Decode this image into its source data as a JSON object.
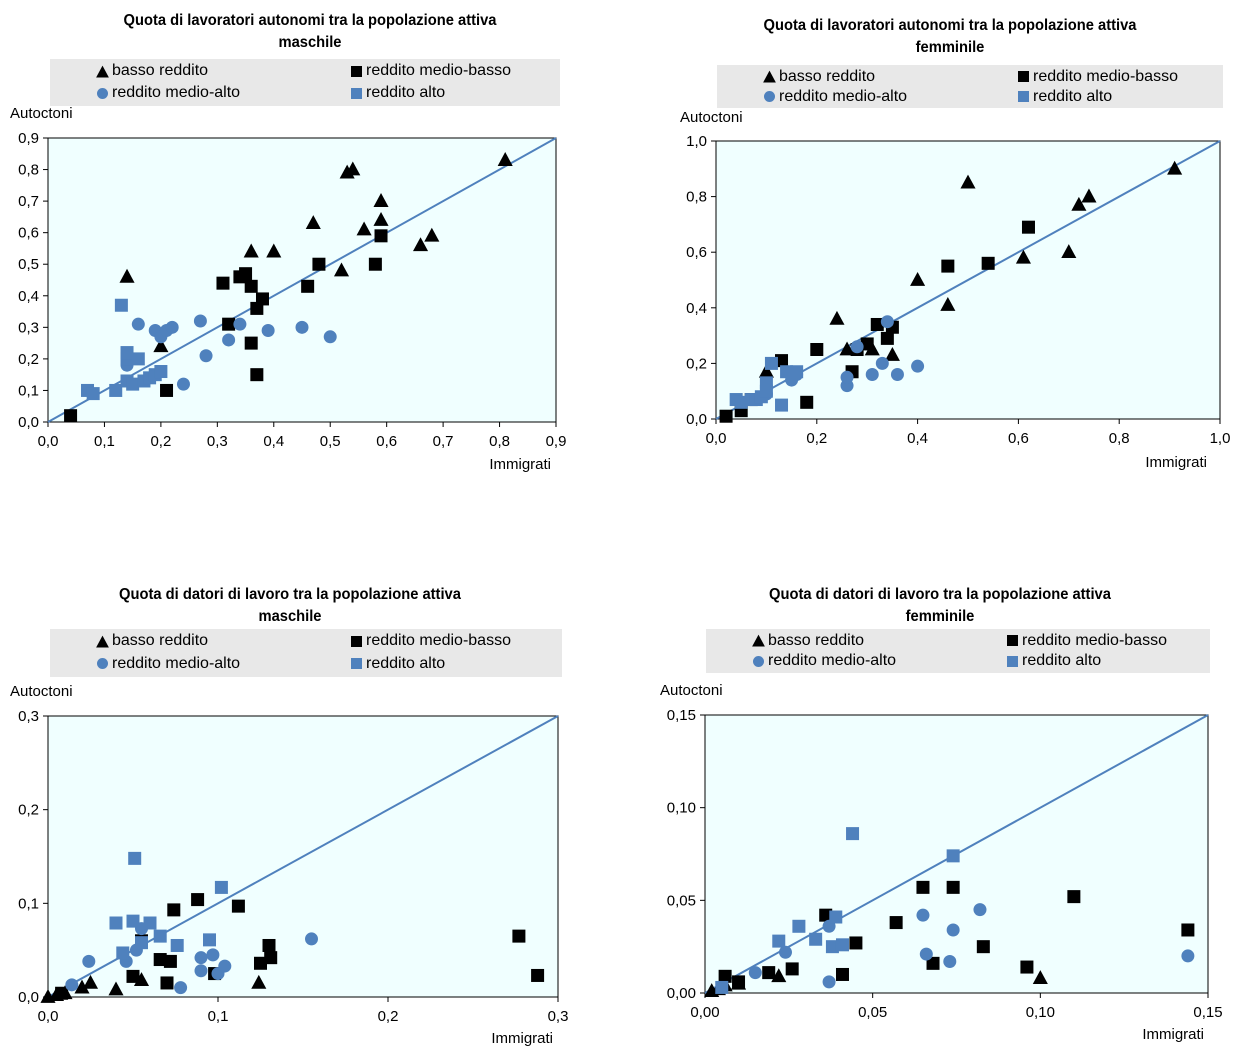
{
  "colors": {
    "black": "#000000",
    "blue": "#4f81bd",
    "plot_bg": "#f0ffff",
    "legend_bg": "#e8e8e8",
    "diag": "#4f81bd"
  },
  "legend_labels": {
    "low": "basso reddito",
    "lower_mid": "reddito medio-basso",
    "upper_mid": "reddito medio-alto",
    "high": "reddito alto"
  },
  "chart_data": [
    {
      "type": "scatter",
      "title": "Quota di lavoratori autonomi tra la popolazione attiva maschile",
      "title_lines": [
        "Quota di lavoratori autonomi tra la popolazione attiva",
        "maschile"
      ],
      "ylabel": "Autoctoni",
      "xlabel": "Immigrati",
      "xlim": [
        0,
        0.9
      ],
      "ylim": [
        0,
        0.9
      ],
      "xticks": [
        0,
        0.1,
        0.2,
        0.3,
        0.4,
        0.5,
        0.6,
        0.7,
        0.8,
        0.9
      ],
      "yticks": [
        0,
        0.1,
        0.2,
        0.3,
        0.4,
        0.5,
        0.6,
        0.7,
        0.8,
        0.9
      ],
      "xtick_labels": [
        "0,0",
        "0,1",
        "0,2",
        "0,3",
        "0,4",
        "0,5",
        "0,6",
        "0,7",
        "0,8",
        "0,9"
      ],
      "ytick_labels": [
        "0,0",
        "0,1",
        "0,2",
        "0,3",
        "0,4",
        "0,5",
        "0,6",
        "0,7",
        "0,8",
        "0,9"
      ],
      "series": [
        {
          "name": "basso reddito",
          "points": [
            [
              0.14,
              0.46
            ],
            [
              0.2,
              0.24
            ],
            [
              0.36,
              0.54
            ],
            [
              0.4,
              0.54
            ],
            [
              0.47,
              0.63
            ],
            [
              0.52,
              0.48
            ],
            [
              0.53,
              0.79
            ],
            [
              0.54,
              0.8
            ],
            [
              0.56,
              0.61
            ],
            [
              0.59,
              0.7
            ],
            [
              0.59,
              0.64
            ],
            [
              0.66,
              0.56
            ],
            [
              0.68,
              0.59
            ],
            [
              0.81,
              0.83
            ]
          ]
        },
        {
          "name": "reddito medio-basso",
          "points": [
            [
              0.04,
              0.02
            ],
            [
              0.21,
              0.1
            ],
            [
              0.31,
              0.44
            ],
            [
              0.32,
              0.31
            ],
            [
              0.34,
              0.46
            ],
            [
              0.35,
              0.47
            ],
            [
              0.36,
              0.43
            ],
            [
              0.37,
              0.36
            ],
            [
              0.38,
              0.39
            ],
            [
              0.36,
              0.25
            ],
            [
              0.37,
              0.15
            ],
            [
              0.46,
              0.43
            ],
            [
              0.48,
              0.5
            ],
            [
              0.58,
              0.5
            ],
            [
              0.59,
              0.59
            ]
          ]
        },
        {
          "name": "reddito medio-alto",
          "points": [
            [
              0.14,
              0.18
            ],
            [
              0.16,
              0.31
            ],
            [
              0.19,
              0.29
            ],
            [
              0.2,
              0.27
            ],
            [
              0.21,
              0.29
            ],
            [
              0.22,
              0.3
            ],
            [
              0.24,
              0.12
            ],
            [
              0.27,
              0.32
            ],
            [
              0.28,
              0.21
            ],
            [
              0.32,
              0.26
            ],
            [
              0.34,
              0.31
            ],
            [
              0.39,
              0.29
            ],
            [
              0.45,
              0.3
            ],
            [
              0.5,
              0.27
            ]
          ]
        },
        {
          "name": "reddito alto",
          "points": [
            [
              0.07,
              0.1
            ],
            [
              0.08,
              0.09
            ],
            [
              0.12,
              0.1
            ],
            [
              0.13,
              0.37
            ],
            [
              0.14,
              0.2
            ],
            [
              0.14,
              0.22
            ],
            [
              0.14,
              0.13
            ],
            [
              0.15,
              0.12
            ],
            [
              0.16,
              0.2
            ],
            [
              0.17,
              0.13
            ],
            [
              0.18,
              0.14
            ],
            [
              0.19,
              0.15
            ],
            [
              0.2,
              0.16
            ]
          ]
        }
      ]
    },
    {
      "type": "scatter",
      "title": "Quota di lavoratori autonomi tra la popolazione attiva femminile",
      "title_lines": [
        "Quota di lavoratori autonomi tra la popolazione attiva",
        "femminile"
      ],
      "ylabel": "Autoctoni",
      "xlabel": "Immigrati",
      "xlim": [
        0,
        1.0
      ],
      "ylim": [
        0,
        1.0
      ],
      "xticks": [
        0,
        0.2,
        0.4,
        0.6,
        0.8,
        1.0
      ],
      "yticks": [
        0,
        0.2,
        0.4,
        0.6,
        0.8,
        1.0
      ],
      "xtick_labels": [
        "0,0",
        "0,2",
        "0,4",
        "0,6",
        "0,8",
        "1,0"
      ],
      "ytick_labels": [
        "0,0",
        "0,2",
        "0,4",
        "0,6",
        "0,8",
        "1,0"
      ],
      "series": [
        {
          "name": "basso reddito",
          "points": [
            [
              0.1,
              0.17
            ],
            [
              0.24,
              0.36
            ],
            [
              0.26,
              0.25
            ],
            [
              0.31,
              0.25
            ],
            [
              0.35,
              0.23
            ],
            [
              0.4,
              0.5
            ],
            [
              0.46,
              0.41
            ],
            [
              0.5,
              0.85
            ],
            [
              0.61,
              0.58
            ],
            [
              0.7,
              0.6
            ],
            [
              0.72,
              0.77
            ],
            [
              0.74,
              0.8
            ],
            [
              0.91,
              0.9
            ]
          ]
        },
        {
          "name": "reddito medio-basso",
          "points": [
            [
              0.02,
              0.01
            ],
            [
              0.05,
              0.03
            ],
            [
              0.07,
              0.07
            ],
            [
              0.13,
              0.21
            ],
            [
              0.18,
              0.06
            ],
            [
              0.2,
              0.25
            ],
            [
              0.27,
              0.17
            ],
            [
              0.28,
              0.25
            ],
            [
              0.3,
              0.27
            ],
            [
              0.32,
              0.34
            ],
            [
              0.34,
              0.29
            ],
            [
              0.35,
              0.33
            ],
            [
              0.46,
              0.55
            ],
            [
              0.54,
              0.56
            ],
            [
              0.62,
              0.69
            ]
          ]
        },
        {
          "name": "reddito medio-alto",
          "points": [
            [
              0.1,
              0.09
            ],
            [
              0.15,
              0.14
            ],
            [
              0.16,
              0.16
            ],
            [
              0.26,
              0.12
            ],
            [
              0.26,
              0.15
            ],
            [
              0.28,
              0.26
            ],
            [
              0.31,
              0.16
            ],
            [
              0.33,
              0.2
            ],
            [
              0.34,
              0.35
            ],
            [
              0.36,
              0.16
            ],
            [
              0.4,
              0.19
            ]
          ]
        },
        {
          "name": "reddito alto",
          "points": [
            [
              0.04,
              0.07
            ],
            [
              0.05,
              0.06
            ],
            [
              0.07,
              0.07
            ],
            [
              0.08,
              0.07
            ],
            [
              0.09,
              0.08
            ],
            [
              0.1,
              0.1
            ],
            [
              0.1,
              0.13
            ],
            [
              0.11,
              0.2
            ],
            [
              0.13,
              0.05
            ],
            [
              0.14,
              0.17
            ],
            [
              0.16,
              0.17
            ]
          ]
        }
      ]
    },
    {
      "type": "scatter",
      "title": "Quota di datori di lavoro tra la popolazione attiva maschile",
      "title_lines": [
        "Quota di datori di lavoro tra la popolazione attiva",
        "maschile"
      ],
      "ylabel": "Autoctoni",
      "xlabel": "Immigrati",
      "xlim": [
        0,
        0.3
      ],
      "ylim": [
        0,
        0.3
      ],
      "xticks": [
        0,
        0.1,
        0.2,
        0.3
      ],
      "yticks": [
        0,
        0.1,
        0.2,
        0.3
      ],
      "xtick_labels": [
        "0,0",
        "0,1",
        "0,2",
        "0,3"
      ],
      "ytick_labels": [
        "0,0",
        "0,1",
        "0,2",
        "0,3"
      ],
      "series": [
        {
          "name": "basso reddito",
          "points": [
            [
              0,
              0
            ],
            [
              0.005,
              0.002
            ],
            [
              0.01,
              0.004
            ],
            [
              0.02,
              0.01
            ],
            [
              0.025,
              0.015
            ],
            [
              0.04,
              0.008
            ],
            [
              0.055,
              0.018
            ],
            [
              0.124,
              0.015
            ]
          ]
        },
        {
          "name": "reddito medio-basso",
          "points": [
            [
              0.008,
              0.004
            ],
            [
              0.05,
              0.022
            ],
            [
              0.055,
              0.06
            ],
            [
              0.066,
              0.04
            ],
            [
              0.07,
              0.015
            ],
            [
              0.072,
              0.038
            ],
            [
              0.074,
              0.093
            ],
            [
              0.088,
              0.104
            ],
            [
              0.098,
              0.025
            ],
            [
              0.112,
              0.097
            ],
            [
              0.125,
              0.036
            ],
            [
              0.13,
              0.055
            ],
            [
              0.131,
              0.042
            ],
            [
              0.277,
              0.065
            ],
            [
              0.288,
              0.023
            ]
          ]
        },
        {
          "name": "reddito medio-alto",
          "points": [
            [
              0.014,
              0.013
            ],
            [
              0.024,
              0.038
            ],
            [
              0.046,
              0.038
            ],
            [
              0.052,
              0.05
            ],
            [
              0.055,
              0.073
            ],
            [
              0.078,
              0.01
            ],
            [
              0.09,
              0.028
            ],
            [
              0.09,
              0.042
            ],
            [
              0.097,
              0.045
            ],
            [
              0.1,
              0.025
            ],
            [
              0.104,
              0.033
            ],
            [
              0.155,
              0.062
            ]
          ]
        },
        {
          "name": "reddito alto",
          "points": [
            [
              0.04,
              0.079
            ],
            [
              0.044,
              0.047
            ],
            [
              0.05,
              0.081
            ],
            [
              0.051,
              0.148
            ],
            [
              0.055,
              0.058
            ],
            [
              0.06,
              0.079
            ],
            [
              0.066,
              0.065
            ],
            [
              0.076,
              0.055
            ],
            [
              0.095,
              0.061
            ],
            [
              0.102,
              0.117
            ]
          ]
        }
      ]
    },
    {
      "type": "scatter",
      "title": "Quota di datori di lavoro tra la popolazione attiva femminile",
      "title_lines": [
        "Quota di datori di lavoro tra la popolazione attiva",
        "femminile"
      ],
      "ylabel": "Autoctoni",
      "xlabel": "Immigrati",
      "xlim": [
        0,
        0.15
      ],
      "ylim": [
        0,
        0.15
      ],
      "xticks": [
        0,
        0.05,
        0.1,
        0.15
      ],
      "yticks": [
        0,
        0.05,
        0.1,
        0.15
      ],
      "xtick_labels": [
        "0,00",
        "0,05",
        "0,10",
        "0,15"
      ],
      "ytick_labels": [
        "0,00",
        "0,05",
        "0,10",
        "0,15"
      ],
      "series": [
        {
          "name": "basso reddito",
          "points": [
            [
              0.002,
              0.001
            ],
            [
              0.004,
              0.002
            ],
            [
              0.006,
              0.004
            ],
            [
              0.01,
              0.005
            ],
            [
              0.022,
              0.009
            ],
            [
              0.1,
              0.008
            ]
          ]
        },
        {
          "name": "reddito medio-basso",
          "points": [
            [
              0.006,
              0.009
            ],
            [
              0.01,
              0.006
            ],
            [
              0.019,
              0.011
            ],
            [
              0.026,
              0.013
            ],
            [
              0.036,
              0.042
            ],
            [
              0.041,
              0.01
            ],
            [
              0.045,
              0.027
            ],
            [
              0.057,
              0.038
            ],
            [
              0.065,
              0.057
            ],
            [
              0.068,
              0.016
            ],
            [
              0.074,
              0.057
            ],
            [
              0.083,
              0.025
            ],
            [
              0.096,
              0.014
            ],
            [
              0.11,
              0.052
            ],
            [
              0.144,
              0.034
            ]
          ]
        },
        {
          "name": "reddito medio-alto",
          "points": [
            [
              0.015,
              0.011
            ],
            [
              0.024,
              0.022
            ],
            [
              0.037,
              0.036
            ],
            [
              0.037,
              0.006
            ],
            [
              0.065,
              0.042
            ],
            [
              0.066,
              0.021
            ],
            [
              0.073,
              0.017
            ],
            [
              0.074,
              0.034
            ],
            [
              0.082,
              0.045
            ],
            [
              0.144,
              0.02
            ]
          ]
        },
        {
          "name": "reddito alto",
          "points": [
            [
              0.005,
              0.003
            ],
            [
              0.022,
              0.028
            ],
            [
              0.028,
              0.036
            ],
            [
              0.033,
              0.029
            ],
            [
              0.038,
              0.025
            ],
            [
              0.039,
              0.041
            ],
            [
              0.041,
              0.026
            ],
            [
              0.044,
              0.086
            ],
            [
              0.074,
              0.074
            ]
          ]
        }
      ]
    }
  ]
}
